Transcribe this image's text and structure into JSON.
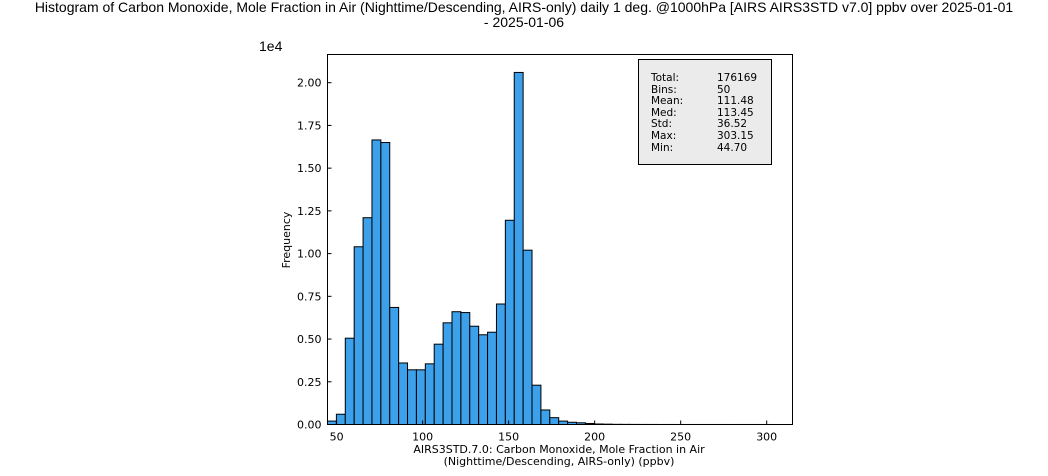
{
  "title_lines": [
    "Histogram of Carbon Monoxide, Mole Fraction in Air (Nighttime/Descending, AIRS-only) daily 1 deg. @1000hPa [AIRS AIRS3STD v7.0] ppbv over 2025-01-01",
    "- 2025-01-06"
  ],
  "chart_data": {
    "type": "bar",
    "title": "Histogram of Carbon Monoxide, Mole Fraction in Air (Nighttime/Descending, AIRS-only) daily 1 deg. @1000hPa [AIRS AIRS3STD v7.0] ppbv over 2025-01-01 - 2025-01-06",
    "xlabel_lines": [
      "AIRS3STD.7.0: Carbon Monoxide, Mole Fraction in Air",
      "(Nighttime/Descending, AIRS-only) (ppbv)"
    ],
    "ylabel": "Frequency",
    "y_multiplier_label": "1e4",
    "xlim": [
      44.7,
      315.0
    ],
    "ylim": [
      0,
      21650
    ],
    "xticks": [
      50,
      100,
      150,
      200,
      250,
      300
    ],
    "xtick_labels": [
      "50",
      "100",
      "150",
      "200",
      "250",
      "300"
    ],
    "yticks": [
      0,
      2500,
      5000,
      7500,
      10000,
      12500,
      15000,
      17500,
      20000
    ],
    "ytick_labels": [
      "0.00",
      "0.25",
      "0.50",
      "0.75",
      "1.00",
      "1.25",
      "1.50",
      "1.75",
      "2.00"
    ],
    "bin_start": 44.7,
    "bin_width": 5.169,
    "bins": 50,
    "counts": [
      200,
      600,
      5050,
      10400,
      12100,
      16650,
      16500,
      6850,
      3600,
      3200,
      3200,
      3550,
      4700,
      5950,
      6600,
      6550,
      5750,
      5250,
      5400,
      7050,
      11950,
      20600,
      10200,
      2300,
      850,
      400,
      200,
      130,
      100,
      60,
      30,
      20,
      10,
      8,
      5,
      4,
      3,
      2,
      2,
      1,
      1,
      1,
      1,
      1,
      1,
      1,
      1,
      1,
      1,
      1
    ],
    "bar_color": "#3ca0ea",
    "edge_color": "#000000",
    "grid": false,
    "legend": "none",
    "stats_placement": "top-right"
  },
  "stats": [
    {
      "label": "Total:",
      "value": "176169"
    },
    {
      "label": "Bins:",
      "value": "50"
    },
    {
      "label": "Mean:",
      "value": "111.48"
    },
    {
      "label": "Med:",
      "value": "113.45"
    },
    {
      "label": "Std:",
      "value": "36.52"
    },
    {
      "label": "Max:",
      "value": "303.15"
    },
    {
      "label": "Min:",
      "value": "44.70"
    }
  ]
}
